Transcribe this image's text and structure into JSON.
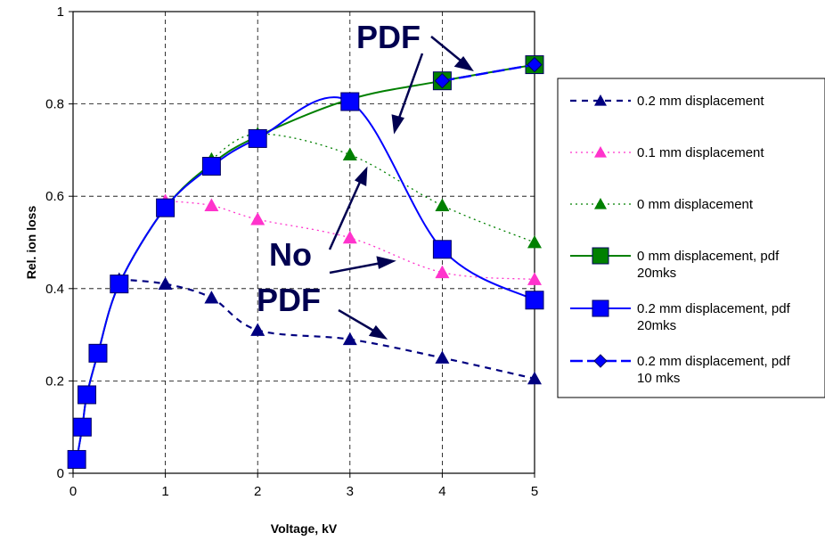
{
  "chart_data": {
    "type": "line",
    "xlabel": "Voltage, kV",
    "ylabel": "Rel. ion loss",
    "xlim": [
      0,
      5
    ],
    "ylim": [
      0,
      1
    ],
    "xticks": [
      "0",
      "1",
      "2",
      "3",
      "4",
      "5"
    ],
    "yticks": [
      "0",
      "0.2",
      "0.4",
      "0.6",
      "0.8",
      "1"
    ],
    "grid": true,
    "legend_position": "right",
    "series": [
      {
        "name": "0.2 mm displacement",
        "color": "#000080",
        "dash": "dashed",
        "marker": "triangle",
        "x": [
          0.5,
          1,
          1.5,
          2,
          3,
          4,
          5
        ],
        "y": [
          0.42,
          0.41,
          0.38,
          0.31,
          0.29,
          0.25,
          0.205
        ]
      },
      {
        "name": "0.1 mm displacement",
        "color": "#ff33cc",
        "dash": "dotted",
        "marker": "triangle",
        "x": [
          1,
          1.5,
          2,
          3,
          4,
          5
        ],
        "y": [
          0.59,
          0.58,
          0.55,
          0.51,
          0.435,
          0.42
        ]
      },
      {
        "name": "0 mm displacement",
        "color": "#008000",
        "dash": "dotted",
        "marker": "triangle",
        "x": [
          1.5,
          2,
          3,
          4,
          5
        ],
        "y": [
          0.68,
          0.735,
          0.69,
          0.58,
          0.5
        ]
      },
      {
        "name": "0 mm displacement,  pdf 20mks",
        "color": "#008000",
        "dash": "solid",
        "marker": "square",
        "x": [
          0.04,
          0.1,
          0.15,
          0.27,
          0.5,
          1,
          1.5,
          2,
          3,
          4,
          5
        ],
        "y": [
          0.03,
          0.1,
          0.17,
          0.26,
          0.41,
          0.575,
          0.67,
          0.73,
          0.81,
          0.85,
          0.885
        ]
      },
      {
        "name": "0.2 mm displacement, pdf 20mks",
        "color": "#0000ff",
        "dash": "solid",
        "marker": "square",
        "x": [
          0.04,
          0.1,
          0.15,
          0.27,
          0.5,
          1,
          1.5,
          2,
          3,
          4,
          5
        ],
        "y": [
          0.03,
          0.1,
          0.17,
          0.26,
          0.41,
          0.575,
          0.665,
          0.725,
          0.805,
          0.485,
          0.375
        ]
      },
      {
        "name": "0.2 mm displacement, pdf 10 mks",
        "color": "#0000ff",
        "dash": "longdash",
        "marker": "diamond",
        "x": [
          4,
          5
        ],
        "y": [
          0.85,
          0.885
        ]
      }
    ],
    "annotations": [
      "PDF",
      "No",
      "PDF"
    ]
  }
}
